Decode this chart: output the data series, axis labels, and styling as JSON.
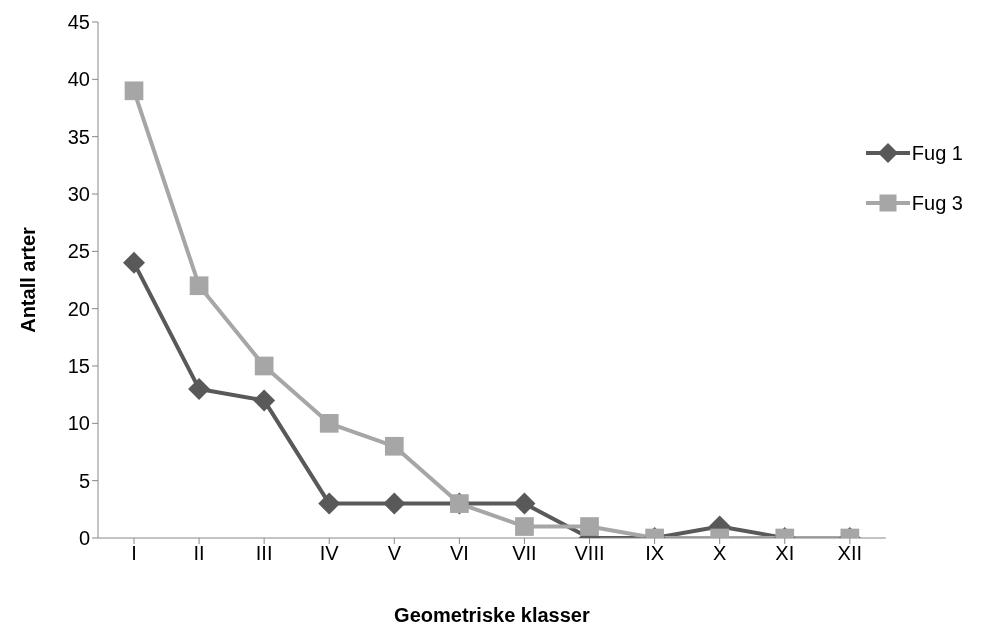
{
  "chart_data": {
    "type": "line",
    "xlabel": "Geometriske klasser",
    "ylabel": "Antall arter",
    "categories": [
      "I",
      "II",
      "III",
      "IV",
      "V",
      "VI",
      "VII",
      "VIII",
      "IX",
      "X",
      "XI",
      "XII"
    ],
    "series": [
      {
        "name": "Fug 1",
        "color": "#595959",
        "marker": "diamond",
        "values": [
          24,
          13,
          12,
          3,
          3,
          3,
          3,
          0,
          0,
          1,
          0,
          0
        ]
      },
      {
        "name": "Fug 3",
        "color": "#a6a6a6",
        "marker": "square",
        "values": [
          39,
          22,
          15,
          10,
          8,
          3,
          1,
          1,
          0,
          0,
          0,
          0
        ]
      }
    ],
    "ylim": [
      0,
      45
    ],
    "yticks": [
      0,
      5,
      10,
      15,
      20,
      25,
      30,
      35,
      40,
      45
    ],
    "grid": false,
    "legend": "top right",
    "line_style": "solid"
  }
}
